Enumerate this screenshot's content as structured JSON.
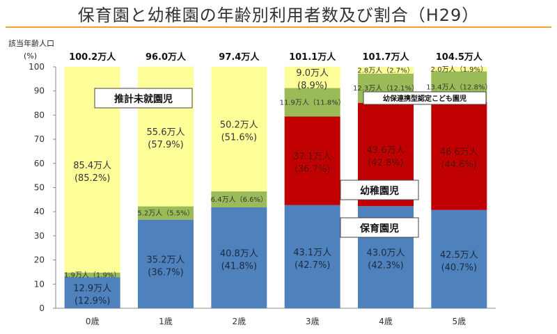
{
  "header": {
    "title": "保育園と幼稚園の年齢別利用者数及び割合（H29）"
  },
  "colors": {
    "hoikuen": "#4f81bd",
    "yochien": "#c00000",
    "kodomoen": "#9bbb59",
    "mishugaku": "#ffff99",
    "title_rule": "#f0a030"
  },
  "chart_data": {
    "type": "bar",
    "stacked": true,
    "percent_stacked": true,
    "title": "保育園と幼稚園の年齢別利用者数及び割合（H29）",
    "population_label": "該当年齢人口",
    "ylabel_unit": "(%)",
    "ylim": [
      0,
      100
    ],
    "yticks": [
      "0",
      "10",
      "20",
      "30",
      "40",
      "50",
      "60",
      "70",
      "80",
      "90",
      "100"
    ],
    "categories": [
      "0歳",
      "1歳",
      "2歳",
      "3歳",
      "4歳",
      "5歳"
    ],
    "totals": [
      "100.2万人",
      "96.0万人",
      "97.4万人",
      "101.1万人",
      "101.7万人",
      "104.5万人"
    ],
    "grid": false,
    "series": [
      {
        "name": "保育園児",
        "key": "hoikuen",
        "values": [
          12.9,
          36.7,
          41.8,
          42.7,
          42.3,
          40.7
        ],
        "labels": [
          [
            "12.9万人",
            "(12.9%)"
          ],
          [
            "35.2万人",
            "(36.7%)"
          ],
          [
            "40.8万人",
            "(41.8%)"
          ],
          [
            "43.1万人",
            "(42.7%)"
          ],
          [
            "43.0万人",
            "(42.3%)"
          ],
          [
            "42.5万人",
            "(40.7%)"
          ]
        ]
      },
      {
        "name": "幼稚園児",
        "key": "yochien",
        "values": [
          0,
          0,
          0,
          36.7,
          42.8,
          44.6
        ],
        "labels": [
          [],
          [],
          [],
          [
            "37.1万人",
            "(36.7%)"
          ],
          [
            "43.6万人",
            "(42.8%)"
          ],
          [
            "46.6万人",
            "(44.6%)"
          ]
        ]
      },
      {
        "name": "幼保連携型認定こども園児",
        "key": "kodomoen",
        "values": [
          1.9,
          5.5,
          6.6,
          11.8,
          12.1,
          12.8
        ],
        "labels": [
          [
            "1.9万人（1.9%）"
          ],
          [
            "5.2万人（5.5%）"
          ],
          [
            "6.4万人（6.6%）"
          ],
          [
            "11.9万人（11.8%）"
          ],
          [
            "12.3万人（12.1%）"
          ],
          [
            "13.4万人（12.8%）"
          ]
        ]
      },
      {
        "name": "推計未就園児",
        "key": "mishugaku",
        "values": [
          85.2,
          57.9,
          51.6,
          8.9,
          2.7,
          1.9
        ],
        "labels": [
          [
            "85.4万人",
            "(85.2%)"
          ],
          [
            "55.6万人",
            "(57.9%)"
          ],
          [
            "50.2万人",
            "(51.6%)"
          ],
          [
            "9.0万人",
            "(8.9%)"
          ],
          [
            "2.8万人（2.7%）"
          ],
          [
            "2.0万人（1.9%）"
          ]
        ]
      }
    ],
    "callouts": [
      "推計未就園児",
      "幼保連携型認定こども園児",
      "幼稚園児",
      "保育園児"
    ]
  }
}
